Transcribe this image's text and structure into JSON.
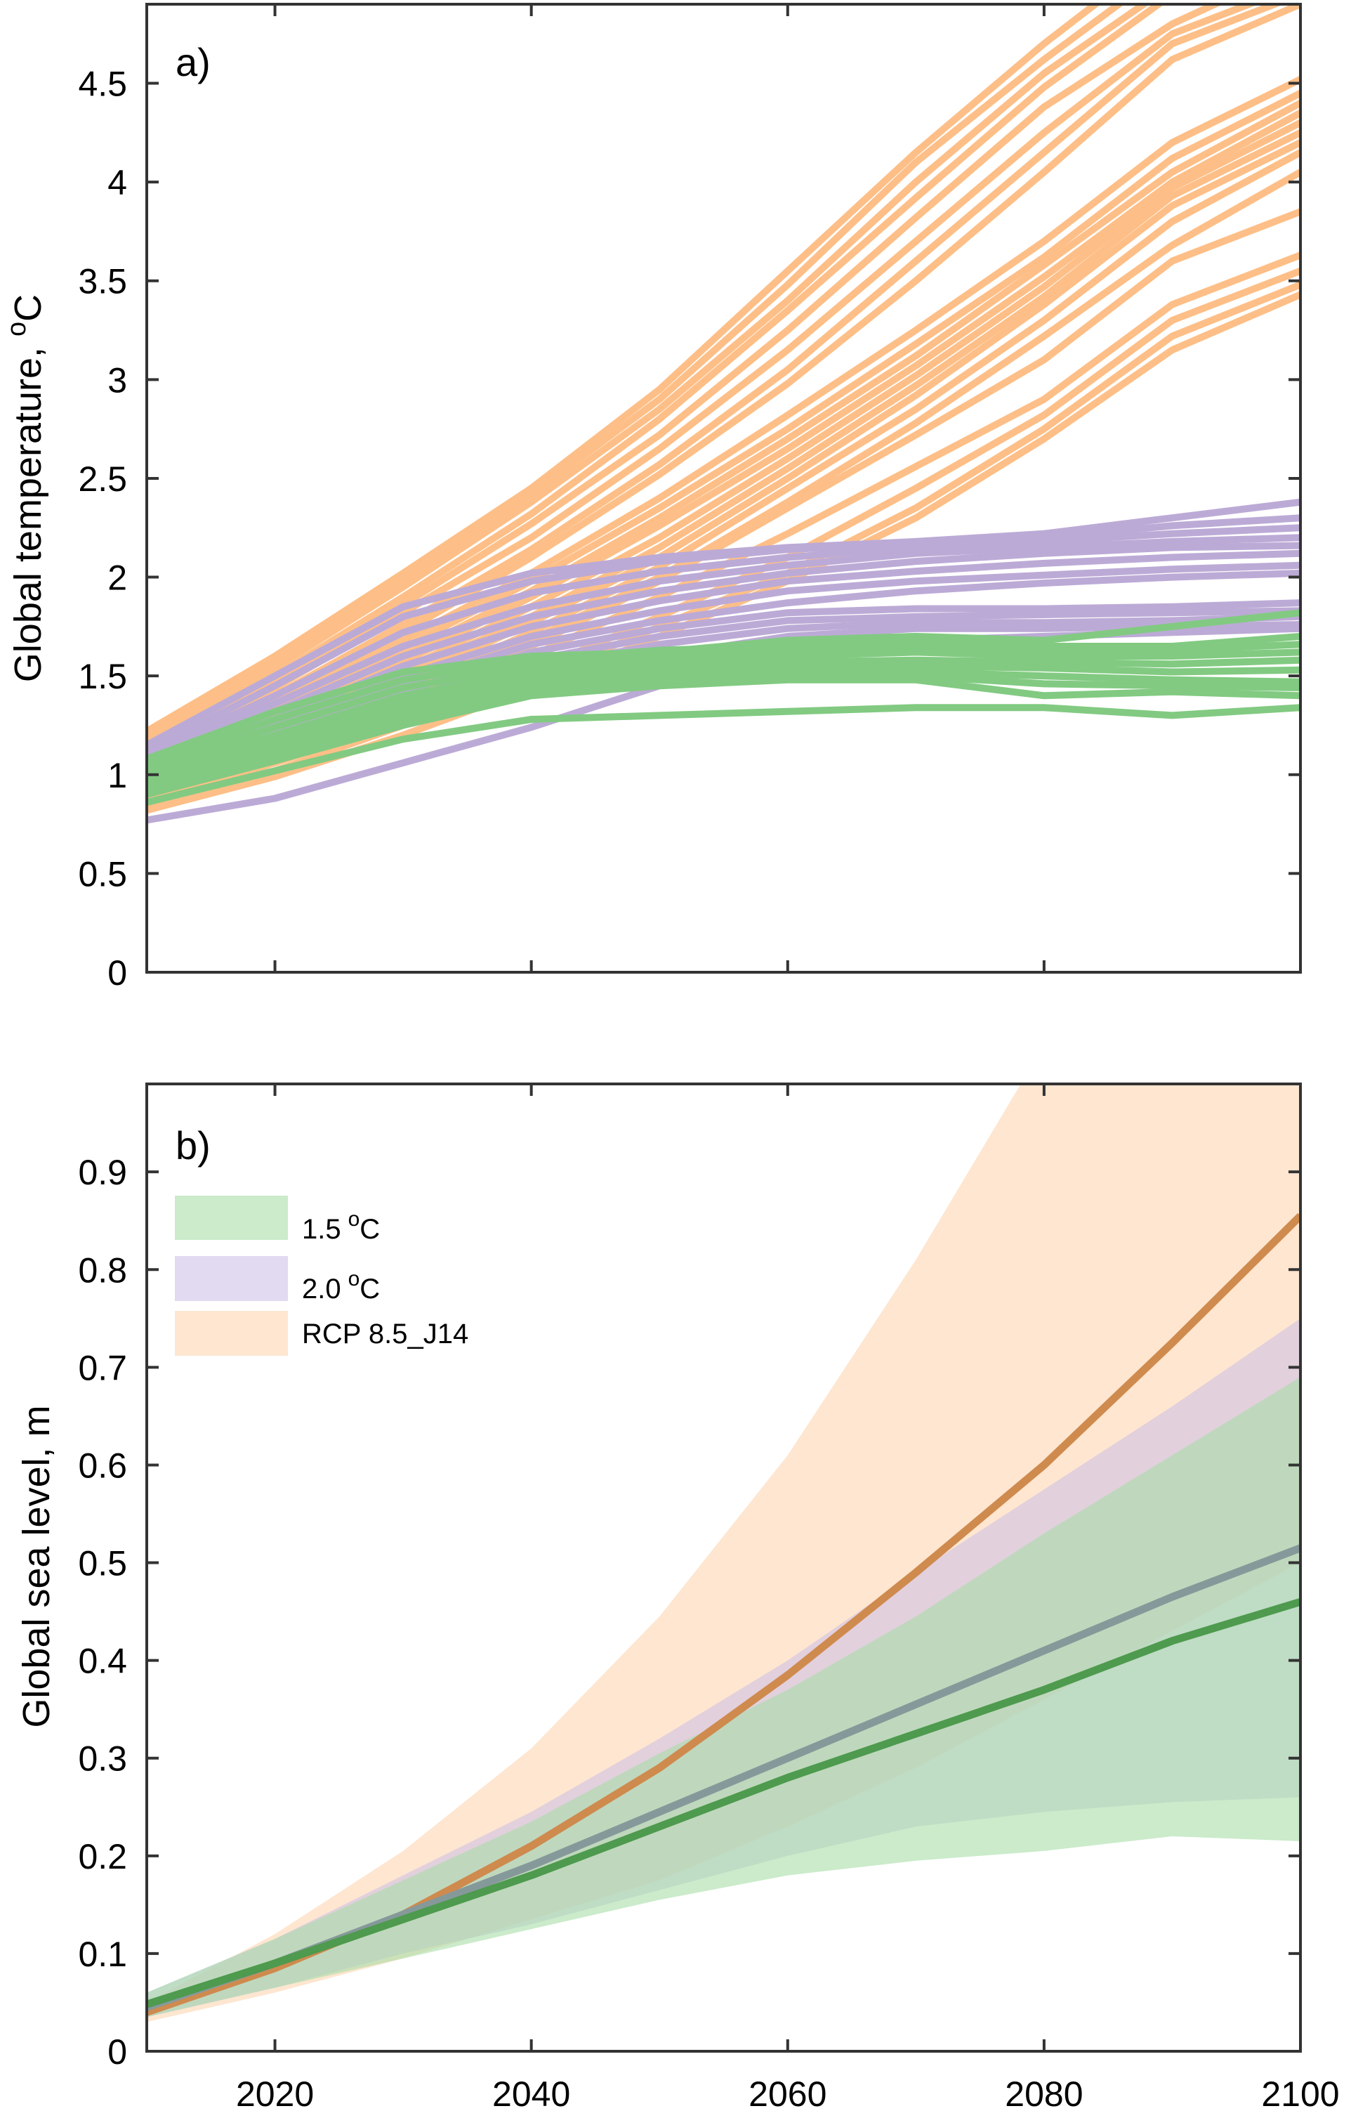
{
  "chart_data": [
    {
      "type": "line",
      "panel_label": "a)",
      "ylabel": "Global temperature, °C",
      "ylabel_parts": {
        "main": "Global temperature, ",
        "sup": "o",
        "unit": "C"
      },
      "xlabel": "",
      "xlim": [
        2010,
        2100
      ],
      "ylim": [
        0,
        4.9
      ],
      "xticks": [
        2020,
        2040,
        2060,
        2080,
        2100
      ],
      "xtick_labels_shown": false,
      "yticks": [
        0,
        0.5,
        1,
        1.5,
        2,
        2.5,
        3,
        3.5,
        4,
        4.5
      ],
      "ytick_labels": [
        "0",
        "0.5",
        "1",
        "1.5",
        "2",
        "2.5",
        "3",
        "3.5",
        "4",
        "4.5"
      ],
      "grid": false,
      "x": [
        2010,
        2020,
        2030,
        2040,
        2050,
        2060,
        2070,
        2080,
        2090,
        2100
      ],
      "groups": [
        {
          "name": "RCP 8.5",
          "color": "#FDBF87",
          "series": [
            [
              1.22,
              1.6,
              2.02,
              2.45,
              2.95,
              3.55,
              4.15,
              4.7,
              5.2,
              5.6
            ],
            [
              1.2,
              1.57,
              1.98,
              2.42,
              2.9,
              3.48,
              4.1,
              4.62,
              5.1,
              5.5
            ],
            [
              1.18,
              1.54,
              1.95,
              2.38,
              2.85,
              3.4,
              4.0,
              4.55,
              5.0,
              5.4
            ],
            [
              1.16,
              1.5,
              1.9,
              2.32,
              2.8,
              3.35,
              3.92,
              4.48,
              4.95,
              5.3
            ],
            [
              1.14,
              1.47,
              1.86,
              2.27,
              2.72,
              3.25,
              3.82,
              4.38,
              4.8,
              5.1
            ],
            [
              1.12,
              1.44,
              1.82,
              2.2,
              2.65,
              3.15,
              3.7,
              4.25,
              4.75,
              5.0
            ],
            [
              1.1,
              1.4,
              1.76,
              2.14,
              2.57,
              3.05,
              3.6,
              4.15,
              4.7,
              4.95
            ],
            [
              1.08,
              1.37,
              1.72,
              2.1,
              2.52,
              2.98,
              3.5,
              4.05,
              4.62,
              4.9
            ],
            [
              1.08,
              1.35,
              1.68,
              2.02,
              2.4,
              2.82,
              3.25,
              3.7,
              4.2,
              4.52
            ],
            [
              1.06,
              1.32,
              1.64,
              1.98,
              2.35,
              2.75,
              3.18,
              3.62,
              4.12,
              4.45
            ],
            [
              1.04,
              1.3,
              1.6,
              1.93,
              2.3,
              2.7,
              3.12,
              3.58,
              4.05,
              4.4
            ],
            [
              1.02,
              1.28,
              1.57,
              1.9,
              2.26,
              2.65,
              3.07,
              3.52,
              4.0,
              4.35
            ],
            [
              1.0,
              1.25,
              1.53,
              1.85,
              2.2,
              2.6,
              3.02,
              3.47,
              3.97,
              4.3
            ],
            [
              0.98,
              1.22,
              1.5,
              1.8,
              2.15,
              2.55,
              2.97,
              3.42,
              3.93,
              4.25
            ],
            [
              0.96,
              1.2,
              1.47,
              1.77,
              2.1,
              2.5,
              2.92,
              3.38,
              3.88,
              4.2
            ],
            [
              0.94,
              1.17,
              1.43,
              1.72,
              2.05,
              2.45,
              2.85,
              3.3,
              3.8,
              4.15
            ],
            [
              0.92,
              1.14,
              1.4,
              1.68,
              2.0,
              2.38,
              2.78,
              3.22,
              3.68,
              4.05
            ],
            [
              0.9,
              1.12,
              1.37,
              1.65,
              1.98,
              2.35,
              2.72,
              3.1,
              3.6,
              3.85
            ],
            [
              0.88,
              1.1,
              1.33,
              1.6,
              1.9,
              2.22,
              2.56,
              2.9,
              3.38,
              3.63
            ],
            [
              0.86,
              1.06,
              1.28,
              1.52,
              1.8,
              2.1,
              2.45,
              2.82,
              3.3,
              3.55
            ],
            [
              0.84,
              1.02,
              1.25,
              1.48,
              1.75,
              2.02,
              2.35,
              2.75,
              3.22,
              3.48
            ],
            [
              0.82,
              0.99,
              1.2,
              1.44,
              1.7,
              1.98,
              2.3,
              2.7,
              3.15,
              3.43
            ]
          ]
        },
        {
          "name": "2.0 °C",
          "color": "#BCAAD6",
          "series": [
            [
              1.15,
              1.5,
              1.85,
              2.02,
              2.1,
              2.15,
              2.18,
              2.22,
              2.3,
              2.38
            ],
            [
              1.12,
              1.45,
              1.8,
              1.98,
              2.08,
              2.14,
              2.17,
              2.2,
              2.26,
              2.3
            ],
            [
              1.1,
              1.4,
              1.72,
              1.92,
              2.03,
              2.1,
              2.15,
              2.18,
              2.22,
              2.25
            ],
            [
              1.08,
              1.36,
              1.65,
              1.85,
              1.98,
              2.06,
              2.12,
              2.15,
              2.18,
              2.2
            ],
            [
              1.06,
              1.32,
              1.6,
              1.8,
              1.93,
              2.02,
              2.08,
              2.12,
              2.15,
              2.16
            ],
            [
              1.04,
              1.28,
              1.55,
              1.75,
              1.88,
              1.98,
              2.03,
              2.07,
              2.1,
              2.12
            ],
            [
              1.02,
              1.25,
              1.5,
              1.7,
              1.83,
              1.93,
              1.98,
              2.01,
              2.04,
              2.06
            ],
            [
              1.0,
              1.22,
              1.46,
              1.66,
              1.78,
              1.87,
              1.93,
              1.97,
              2.0,
              2.02
            ],
            [
              0.98,
              1.19,
              1.42,
              1.62,
              1.74,
              1.82,
              1.84,
              1.84,
              1.85,
              1.87
            ],
            [
              0.96,
              1.16,
              1.38,
              1.58,
              1.7,
              1.78,
              1.8,
              1.81,
              1.82,
              1.83
            ],
            [
              0.93,
              1.12,
              1.34,
              1.54,
              1.66,
              1.74,
              1.77,
              1.77,
              1.78,
              1.8
            ],
            [
              0.9,
              1.08,
              1.3,
              1.48,
              1.6,
              1.7,
              1.74,
              1.74,
              1.75,
              1.76
            ],
            [
              0.77,
              0.88,
              1.06,
              1.24,
              1.45,
              1.6,
              1.68,
              1.7,
              1.72,
              1.74
            ]
          ]
        },
        {
          "name": "1.5 °C",
          "color": "#82CA82",
          "series": [
            [
              1.08,
              1.32,
              1.52,
              1.6,
              1.62,
              1.68,
              1.7,
              1.68,
              1.75,
              1.82
            ],
            [
              1.05,
              1.28,
              1.48,
              1.58,
              1.63,
              1.65,
              1.67,
              1.65,
              1.65,
              1.7
            ],
            [
              1.02,
              1.24,
              1.44,
              1.55,
              1.6,
              1.62,
              1.64,
              1.63,
              1.63,
              1.66
            ],
            [
              1.0,
              1.2,
              1.4,
              1.52,
              1.57,
              1.6,
              1.62,
              1.6,
              1.6,
              1.62
            ],
            [
              0.98,
              1.17,
              1.37,
              1.49,
              1.55,
              1.57,
              1.58,
              1.57,
              1.56,
              1.58
            ],
            [
              0.96,
              1.15,
              1.34,
              1.46,
              1.52,
              1.54,
              1.55,
              1.54,
              1.52,
              1.53
            ],
            [
              0.94,
              1.12,
              1.31,
              1.44,
              1.5,
              1.52,
              1.52,
              1.5,
              1.48,
              1.47
            ],
            [
              0.92,
              1.1,
              1.28,
              1.42,
              1.48,
              1.5,
              1.5,
              1.46,
              1.45,
              1.44
            ],
            [
              0.9,
              1.07,
              1.25,
              1.4,
              1.45,
              1.48,
              1.48,
              1.4,
              1.42,
              1.4
            ],
            [
              0.86,
              1.02,
              1.18,
              1.28,
              1.3,
              1.32,
              1.34,
              1.34,
              1.3,
              1.34
            ]
          ]
        }
      ]
    },
    {
      "type": "area",
      "panel_label": "b)",
      "ylabel": "Global sea level, m",
      "xlabel": "",
      "xlim": [
        2010,
        2100
      ],
      "ylim": [
        0,
        0.99
      ],
      "xticks": [
        2020,
        2040,
        2060,
        2080,
        2100
      ],
      "xtick_labels": [
        "2020",
        "2040",
        "2060",
        "2080",
        "2100"
      ],
      "yticks": [
        0,
        0.1,
        0.2,
        0.3,
        0.4,
        0.5,
        0.6,
        0.7,
        0.8,
        0.9
      ],
      "ytick_labels": [
        "0",
        "0.1",
        "0.2",
        "0.3",
        "0.4",
        "0.5",
        "0.6",
        "0.7",
        "0.8",
        "0.9"
      ],
      "grid": false,
      "legend_position": "top-left",
      "x": [
        2010,
        2020,
        2030,
        2040,
        2050,
        2060,
        2070,
        2080,
        2090,
        2100
      ],
      "series": [
        {
          "name": "RCP 8.5_J14",
          "legend_label": "RCP 8.5_J14",
          "fill_color": "#FDD5B1",
          "line_color": "#CF8A4E",
          "median": [
            0.04,
            0.085,
            0.14,
            0.21,
            0.29,
            0.385,
            0.49,
            0.6,
            0.725,
            0.855
          ],
          "upper": [
            0.05,
            0.12,
            0.205,
            0.31,
            0.445,
            0.61,
            0.81,
            1.03,
            1.28,
            1.5
          ],
          "lower": [
            0.03,
            0.06,
            0.095,
            0.135,
            0.175,
            0.23,
            0.29,
            0.36,
            0.43,
            0.5
          ]
        },
        {
          "name": "2.0 °C",
          "legend_label": "2.0",
          "legend_unit": "C",
          "fill_color": "#CFC2E6",
          "line_color": "#86999A",
          "median": [
            0.045,
            0.09,
            0.14,
            0.19,
            0.245,
            0.3,
            0.355,
            0.41,
            0.465,
            0.515
          ],
          "upper": [
            0.06,
            0.115,
            0.18,
            0.245,
            0.32,
            0.4,
            0.49,
            0.575,
            0.66,
            0.75
          ],
          "lower": [
            0.035,
            0.065,
            0.1,
            0.13,
            0.165,
            0.2,
            0.23,
            0.245,
            0.255,
            0.26
          ]
        },
        {
          "name": "1.5 °C",
          "legend_label": "1.5",
          "legend_unit": "C",
          "fill_color": "#A8DDA8",
          "line_color": "#4E9A4E",
          "median": [
            0.048,
            0.09,
            0.135,
            0.18,
            0.23,
            0.28,
            0.325,
            0.37,
            0.42,
            0.46
          ],
          "upper": [
            0.06,
            0.115,
            0.175,
            0.235,
            0.305,
            0.37,
            0.445,
            0.53,
            0.61,
            0.69
          ],
          "lower": [
            0.035,
            0.065,
            0.095,
            0.125,
            0.155,
            0.18,
            0.195,
            0.205,
            0.22,
            0.215
          ]
        }
      ]
    }
  ]
}
